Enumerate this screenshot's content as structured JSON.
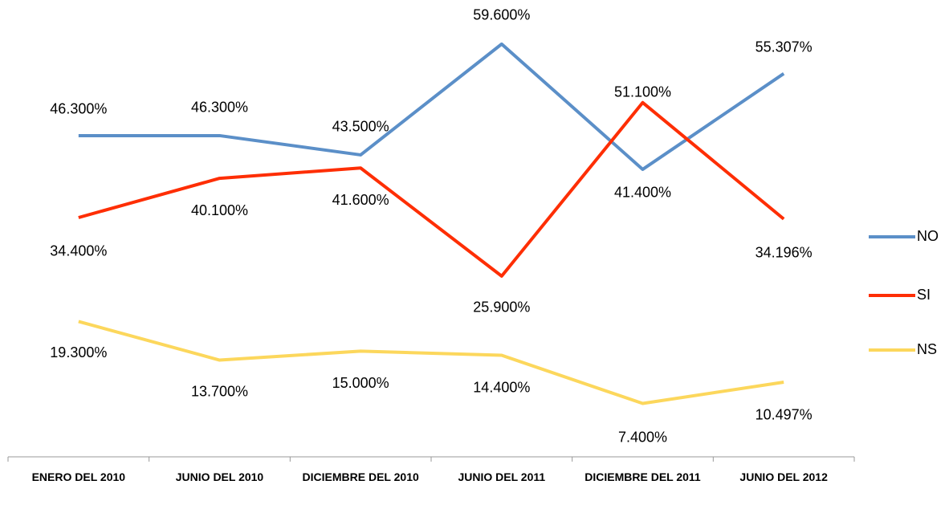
{
  "chart_data": {
    "type": "line",
    "categories": [
      "ENERO DEL 2010",
      "JUNIO DEL 2010",
      "DICIEMBRE DEL 2010",
      "JUNIO DEL 2011",
      "DICIEMBRE DEL 2011",
      "JUNIO DEL 2012"
    ],
    "series": [
      {
        "name": "NO",
        "color": "#5b8fc8",
        "values": [
          46.3,
          46.3,
          43.5,
          59.6,
          41.4,
          55.307
        ],
        "value_labels": [
          "46.300%",
          "46.300%",
          "43.500%",
          "59.600%",
          "41.400%",
          "55.307%"
        ]
      },
      {
        "name": "SI",
        "color": "#fe2e04",
        "values": [
          34.4,
          40.1,
          41.6,
          25.9,
          51.1,
          34.196
        ],
        "value_labels": [
          "34.400%",
          "40.100%",
          "41.600%",
          "25.900%",
          "51.100%",
          "34.196%"
        ]
      },
      {
        "name": "NS",
        "color": "#fcd75c",
        "values": [
          19.3,
          13.7,
          15.0,
          14.4,
          7.4,
          10.497
        ],
        "value_labels": [
          "19.300%",
          "13.700%",
          "15.000%",
          "14.400%",
          "7.400%",
          "10.497%"
        ]
      }
    ],
    "ylim": [
      0,
      66
    ],
    "legend": "right"
  }
}
